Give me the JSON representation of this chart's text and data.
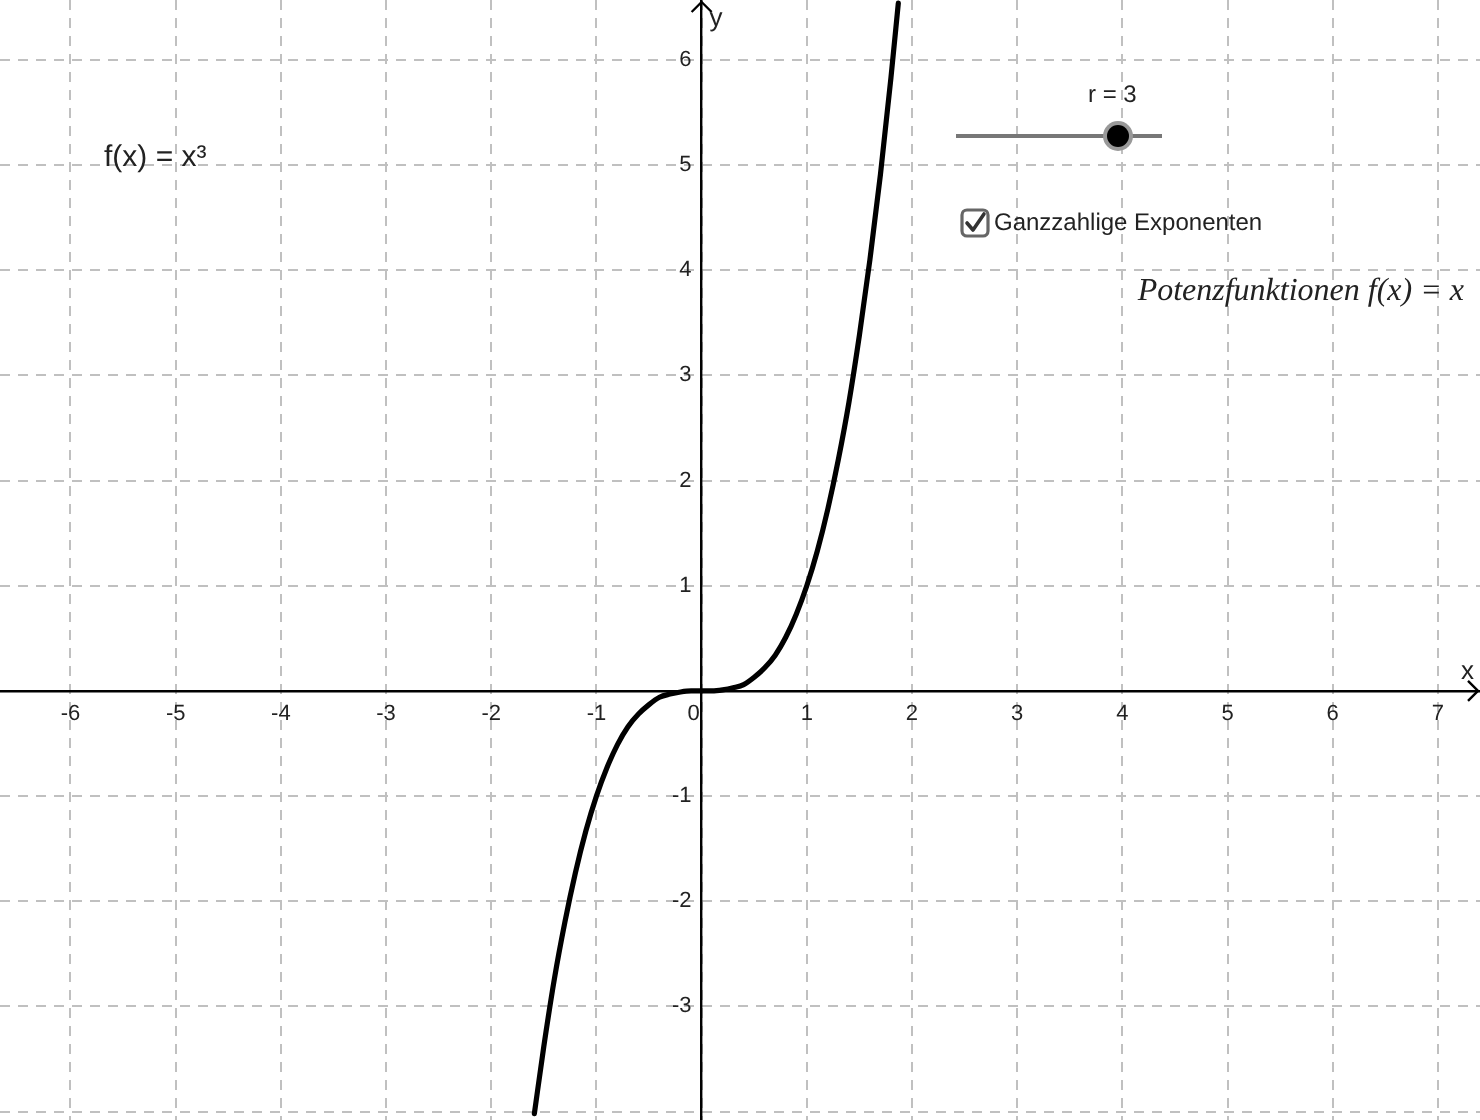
{
  "chart_data": {
    "type": "line",
    "xlabel": "x",
    "ylabel": "y",
    "x": [
      -1.59,
      -1.5,
      -1.4,
      -1.3,
      -1.2,
      -1.1,
      -1,
      -0.9,
      -0.8,
      -0.7,
      -0.6,
      -0.5,
      -0.4,
      -0.3,
      -0.2,
      -0.1,
      0,
      0.1,
      0.2,
      0.3,
      0.4,
      0.5,
      0.6,
      0.7,
      0.8,
      0.9,
      1,
      1.1,
      1.2,
      1.3,
      1.4,
      1.5,
      1.6,
      1.7,
      1.8,
      1.87
    ],
    "series": [
      {
        "color": "#000000",
        "values": [
          -4.02,
          -3.38,
          -2.74,
          -2.2,
          -1.73,
          -1.33,
          -1,
          -0.73,
          -0.51,
          -0.34,
          -0.22,
          -0.13,
          -0.06,
          -0.03,
          -0.01,
          0,
          0,
          0,
          0.01,
          0.03,
          0.06,
          0.13,
          0.22,
          0.34,
          0.51,
          0.73,
          1,
          1.33,
          1.73,
          2.2,
          2.74,
          3.38,
          4.1,
          4.91,
          5.83,
          6.54
        ]
      }
    ],
    "xlim": [
      -6.67,
      7.4
    ],
    "ylim": [
      -4.08,
      6.57
    ],
    "xticks": [
      -6,
      -5,
      -4,
      -3,
      -2,
      -1,
      0,
      1,
      2,
      3,
      4,
      5,
      6,
      7
    ],
    "yticks": [
      {
        "value": -4,
        "label": null
      },
      -3,
      -2,
      -1,
      1,
      2,
      3,
      4,
      5,
      6
    ],
    "grid": true,
    "marker": "none",
    "line_style": "solid",
    "annotations": [
      "f(x) = x³",
      "r = 3",
      "Ganzzahlige Exponenten",
      "Potenzfunktionen f(x) = x"
    ]
  }
}
